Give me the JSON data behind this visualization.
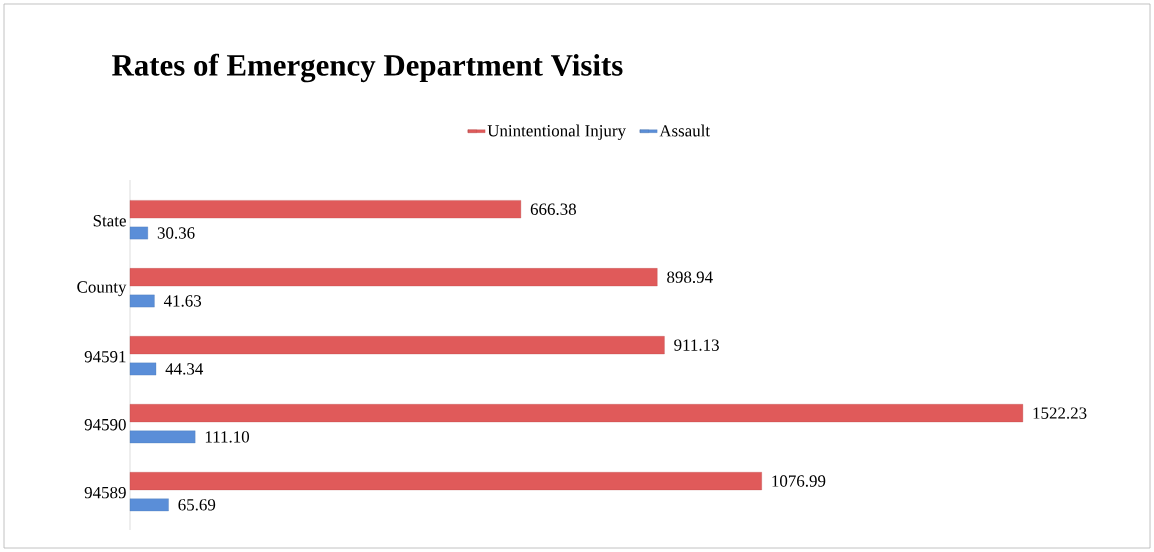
{
  "chart_data": {
    "type": "bar",
    "orientation": "horizontal",
    "title": "Rates of Emergency Department Visits",
    "categories": [
      "State",
      "County",
      "94591",
      "94590",
      "94589"
    ],
    "series": [
      {
        "name": "Unintentional Injury",
        "color": "#e05a5a",
        "values": [
          666.38,
          898.94,
          911.13,
          1522.23,
          1076.99
        ],
        "value_labels": [
          "666.38",
          "898.94",
          "911.13",
          "1522.23",
          "1076.99"
        ]
      },
      {
        "name": "Assault",
        "color": "#5a8ed8",
        "values": [
          30.36,
          41.63,
          44.34,
          111.1,
          65.69
        ],
        "value_labels": [
          "30.36",
          "41.63",
          "44.34",
          "111.10",
          "65.69"
        ]
      }
    ],
    "legend": "top"
  }
}
